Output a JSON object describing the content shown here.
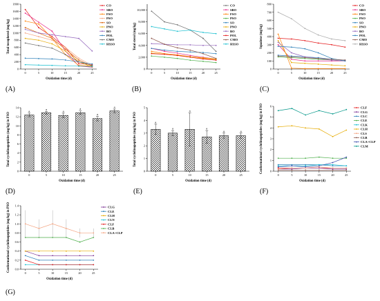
{
  "figure": {
    "background": "#ffffff"
  },
  "chart_data": [
    {
      "id": "A",
      "type": "line",
      "panel_label": "(A)",
      "xlabel": "Oxidation time (d)",
      "ylabel": "Total tocopherol (mg/kg)",
      "x": [
        0,
        5,
        10,
        15,
        20,
        25
      ],
      "xticks": [
        "0",
        "5",
        "10",
        "15",
        "20",
        "25"
      ],
      "ylim": [
        0,
        1800
      ],
      "yticks": [
        0,
        200,
        400,
        600,
        800,
        1000,
        1200,
        1400,
        1600,
        1800
      ],
      "yticklabels": [
        "0",
        "200",
        "400",
        "600",
        "800",
        "1000",
        "1200",
        "1400",
        "1600",
        "1800"
      ],
      "legend": "right",
      "series": [
        {
          "name": "CO",
          "color": "#e41a1c",
          "marker": "circle",
          "values": [
            1650,
            1150,
            900,
            600,
            150,
            120
          ]
        },
        {
          "name": "SBO",
          "color": "#e7298a",
          "marker": "circle",
          "values": [
            1550,
            1300,
            1050,
            500,
            80,
            50
          ]
        },
        {
          "name": "FSO",
          "color": "#ff7f00",
          "marker": "circle",
          "values": [
            1330,
            1250,
            850,
            400,
            100,
            80
          ]
        },
        {
          "name": "PSO",
          "color": "#f4a582",
          "marker": "circle",
          "values": [
            1000,
            900,
            800,
            600,
            300,
            100
          ]
        },
        {
          "name": "SO",
          "color": "#d95f02",
          "marker": "circle",
          "values": [
            1150,
            1000,
            850,
            550,
            250,
            80
          ]
        },
        {
          "name": "PNO",
          "color": "#e6ab02",
          "marker": "circle",
          "values": [
            850,
            800,
            700,
            500,
            200,
            60
          ]
        },
        {
          "name": "BO",
          "color": "#9467bd",
          "marker": "circle",
          "values": [
            1100,
            1000,
            950,
            900,
            850,
            500
          ]
        },
        {
          "name": "POL",
          "color": "#2c7fb8",
          "marker": "circle",
          "values": [
            300,
            290,
            280,
            250,
            200,
            140
          ]
        },
        {
          "name": "CMO",
          "color": "#6b6b6b",
          "marker": "circle",
          "values": [
            720,
            650,
            580,
            400,
            200,
            100
          ]
        },
        {
          "name": "HSSO",
          "color": "#17becf",
          "marker": "circle",
          "values": [
            120,
            110,
            100,
            90,
            80,
            70
          ]
        }
      ]
    },
    {
      "id": "B",
      "type": "line",
      "panel_label": "(B)",
      "xlabel": "Oxidation time (d)",
      "ylabel": "Total sterol (mg/kg)",
      "x": [
        0,
        5,
        10,
        15,
        20,
        25
      ],
      "xticks": [
        "0",
        "5",
        "10",
        "15",
        "20",
        "25"
      ],
      "ylim": [
        0,
        11000
      ],
      "yticks": [
        0,
        2000,
        4000,
        6000,
        8000,
        10000
      ],
      "yticklabels": [
        "0",
        "2,000",
        "4,000",
        "6,000",
        "8,000",
        "10,000"
      ],
      "legend": "right",
      "series": [
        {
          "name": "CO",
          "color": "#6b6b6b",
          "marker": "circle",
          "values": [
            9800,
            8000,
            7500,
            6600,
            5200,
            3000
          ]
        },
        {
          "name": "SBO",
          "color": "#e7298a",
          "marker": "circle",
          "values": [
            3500,
            3000,
            2700,
            2300,
            2000,
            1700
          ]
        },
        {
          "name": "FSO",
          "color": "#ff7f00",
          "marker": "circle",
          "values": [
            3000,
            2600,
            2400,
            2100,
            1800,
            1600
          ]
        },
        {
          "name": "PSO",
          "color": "#4daf4a",
          "marker": "circle",
          "values": [
            2200,
            2000,
            1800,
            1500,
            1300,
            1100
          ]
        },
        {
          "name": "SO",
          "color": "#2c7fb8",
          "marker": "circle",
          "values": [
            3500,
            3200,
            3000,
            2900,
            2800,
            2600
          ]
        },
        {
          "name": "PNO",
          "color": "#e6ab02",
          "marker": "circle",
          "values": [
            2700,
            2500,
            2300,
            2100,
            1900,
            1700
          ]
        },
        {
          "name": "BO",
          "color": "#9467bd",
          "marker": "circle",
          "values": [
            4300,
            4200,
            4100,
            4100,
            4000,
            4000
          ]
        },
        {
          "name": "POL",
          "color": "#e41a1c",
          "marker": "circle",
          "values": [
            2600,
            2500,
            2300,
            2000,
            1700,
            1500
          ]
        },
        {
          "name": "CMO",
          "color": "#8c564b",
          "marker": "circle",
          "values": [
            5200,
            4200,
            3600,
            3200,
            2600,
            1800
          ]
        },
        {
          "name": "HSSO",
          "color": "#17becf",
          "marker": "circle",
          "values": [
            7200,
            6800,
            6400,
            6600,
            6200,
            6000
          ]
        }
      ]
    },
    {
      "id": "C",
      "type": "line",
      "panel_label": "(C)",
      "xlabel": "Oxidation time (d)",
      "ylabel": "Squalene (mg/kg)",
      "x": [
        0,
        5,
        10,
        15,
        20,
        25
      ],
      "xticks": [
        "0",
        "5",
        "10",
        "15",
        "20",
        "25"
      ],
      "ylim": [
        0,
        800
      ],
      "yticks": [
        0,
        100,
        200,
        300,
        400,
        500,
        600,
        700,
        800
      ],
      "yticklabels": [
        "0",
        "100",
        "200",
        "300",
        "400",
        "500",
        "600",
        "700",
        "800"
      ],
      "legend": "right",
      "series": [
        {
          "name": "CO",
          "color": "#e41a1c",
          "marker": "circle",
          "values": [
            380,
            370,
            350,
            320,
            300,
            270
          ]
        },
        {
          "name": "SBO",
          "color": "#e7298a",
          "marker": "circle",
          "values": [
            300,
            120,
            100,
            100,
            100,
            100
          ]
        },
        {
          "name": "FSO",
          "color": "#ff7f00",
          "marker": "circle",
          "values": [
            430,
            10,
            5,
            5,
            5,
            5
          ]
        },
        {
          "name": "PSO",
          "color": "#4daf4a",
          "marker": "circle",
          "values": [
            150,
            140,
            130,
            120,
            110,
            100
          ]
        },
        {
          "name": "SO",
          "color": "#2c7fb8",
          "marker": "circle",
          "values": [
            170,
            160,
            150,
            140,
            120,
            110
          ]
        },
        {
          "name": "PNO",
          "color": "#e6ab02",
          "marker": "circle",
          "values": [
            350,
            80,
            70,
            60,
            50,
            40
          ]
        },
        {
          "name": "BO",
          "color": "#9467bd",
          "marker": "circle",
          "values": [
            330,
            200,
            150,
            130,
            110,
            100
          ]
        },
        {
          "name": "POL",
          "color": "#2c7fb8",
          "marker": "circle",
          "values": [
            280,
            270,
            250,
            200,
            130,
            100
          ]
        },
        {
          "name": "CMO",
          "color": "#8c564b",
          "marker": "circle",
          "values": [
            160,
            150,
            140,
            130,
            120,
            110
          ]
        },
        {
          "name": "HSSO",
          "color": "#aaaaaa",
          "marker": "circle",
          "values": [
            700,
            620,
            500,
            420,
            370,
            350
          ]
        }
      ]
    },
    {
      "id": "D",
      "type": "bar",
      "panel_label": "(D)",
      "xlabel": "Oxidation time (d)",
      "ylabel": "Total cyclolinopeptides (mg/kg) in FSO",
      "categories": [
        "0",
        "5",
        "10",
        "15",
        "20",
        "25"
      ],
      "values": [
        12.4,
        12.9,
        12.3,
        12.9,
        11.6,
        13.3
      ],
      "errors": [
        0.4,
        0.3,
        0.5,
        0.4,
        0.5,
        0.4
      ],
      "labels": [
        "a",
        "a",
        "a",
        "a",
        "a",
        "a"
      ],
      "ylim": [
        0,
        14
      ],
      "yticks": [
        0,
        2,
        4,
        6,
        8,
        10,
        12,
        14
      ],
      "yticklabels": [
        "0",
        "2",
        "4",
        "6",
        "8",
        "10",
        "12",
        "14"
      ]
    },
    {
      "id": "E",
      "type": "bar",
      "panel_label": "(E)",
      "xlabel": "Oxidation time (d)",
      "ylabel": "Total cyclolinopeptides (mg/kg) in PSO",
      "categories": [
        "0",
        "5",
        "10",
        "15",
        "20",
        "25"
      ],
      "values": [
        3.3,
        3.0,
        3.3,
        2.7,
        2.8,
        2.8
      ],
      "errors": [
        0.4,
        0.2,
        1.3,
        0.5,
        0.2,
        0.2
      ],
      "labels": [
        "a",
        "a",
        "a",
        "a",
        "a",
        "a"
      ],
      "ylim": [
        0,
        5
      ],
      "yticks": [
        0,
        1,
        2,
        3,
        4,
        5
      ],
      "yticklabels": [
        "0",
        "1",
        "2",
        "3",
        "4",
        "5"
      ]
    },
    {
      "id": "F",
      "type": "line",
      "panel_label": "(F)",
      "xlabel": "Oxidation time (d)",
      "ylabel": "Conformational cyclolinopeptides (mg/kg) in FSO",
      "x": [
        0,
        5,
        10,
        15,
        20,
        25
      ],
      "xticks": [
        "0",
        "5",
        "10",
        "15",
        "20",
        "25"
      ],
      "ylim": [
        0,
        6
      ],
      "yticks": [
        0,
        1,
        2,
        3,
        4,
        5,
        6
      ],
      "yticklabels": [
        "0",
        "1",
        "2",
        "3",
        "4",
        "5",
        "6"
      ],
      "legend": "right",
      "series": [
        {
          "name": "CLF",
          "color": "#e41a1c",
          "marker": "circle",
          "values": [
            0.3,
            0.3,
            0.3,
            0.3,
            0.3,
            0.3
          ]
        },
        {
          "name": "CLG",
          "color": "#7b3294",
          "marker": "circle",
          "values": [
            0.2,
            0.2,
            0.3,
            0.3,
            0.2,
            0.2
          ]
        },
        {
          "name": "CLC",
          "color": "#2c7fb8",
          "marker": "circle",
          "values": [
            0.6,
            0.6,
            0.6,
            0.6,
            0.5,
            0.5
          ]
        },
        {
          "name": "CLE",
          "color": "#4daf4a",
          "marker": "circle",
          "values": [
            1.2,
            1.2,
            1.2,
            1.3,
            1.2,
            1.2
          ]
        },
        {
          "name": "CLK",
          "color": "#17becf",
          "marker": "circle",
          "values": [
            0.5,
            0.5,
            0.5,
            0.6,
            0.6,
            0.5
          ]
        },
        {
          "name": "CLH",
          "color": "#e6ab02",
          "marker": "circle",
          "values": [
            4.1,
            4.2,
            4.0,
            3.9,
            3.2,
            3.8
          ]
        },
        {
          "name": "CLS",
          "color": "#f4a582",
          "marker": "circle",
          "values": [
            0.2,
            0.3,
            0.3,
            0.4,
            0.3,
            0.3
          ]
        },
        {
          "name": "CLB",
          "color": "#8c564b",
          "marker": "circle",
          "values": [
            0.1,
            0.1,
            0.1,
            0.1,
            0.1,
            0.1
          ]
        },
        {
          "name": "CLA+CLP",
          "color": "#3949ab",
          "marker": "circle",
          "values": [
            0.4,
            0.5,
            0.4,
            0.5,
            0.8,
            1.3
          ]
        },
        {
          "name": "CLM",
          "color": "#009688",
          "marker": "circle",
          "values": [
            5.6,
            5.8,
            5.2,
            5.6,
            5.3,
            5.7
          ]
        }
      ]
    },
    {
      "id": "G",
      "type": "line",
      "panel_label": "(G)",
      "xlabel": "Oxidation time (d)",
      "ylabel": "Conformational cyclolinopeptides (mg/kg) in PSO",
      "x": [
        0,
        5,
        10,
        15,
        20,
        25
      ],
      "xticks": [
        "0",
        "5",
        "10",
        "15",
        "20",
        "25"
      ],
      "ylim": [
        0,
        1.4
      ],
      "yticks": [
        0,
        0.2,
        0.4,
        0.6,
        0.8,
        1.0,
        1.2,
        1.4
      ],
      "yticklabels": [
        "0.0",
        "0.2",
        "0.4",
        "0.6",
        "0.8",
        "1.0",
        "1.2",
        "1.4"
      ],
      "legend": "right",
      "series": [
        {
          "name": "CLG",
          "color": "#7b3294",
          "marker": "circle",
          "values": [
            0.4,
            0.3,
            0.3,
            0.3,
            0.3,
            0.3
          ]
        },
        {
          "name": "CLE",
          "color": "#2c7fb8",
          "marker": "circle",
          "values": [
            0.3,
            0.2,
            0.2,
            0.2,
            0.2,
            0.2
          ]
        },
        {
          "name": "CLH",
          "color": "#e6ab02",
          "marker": "circle",
          "values": [
            0.4,
            0.4,
            0.4,
            0.4,
            0.4,
            0.4
          ]
        },
        {
          "name": "CLN",
          "color": "#17becf",
          "marker": "circle",
          "values": [
            0.1,
            0.1,
            0.1,
            0.1,
            0.1,
            0.1
          ]
        },
        {
          "name": "CLF",
          "color": "#e41a1c",
          "marker": "circle",
          "values": [
            0.2,
            0.1,
            0.1,
            0.1,
            0.1,
            0.1
          ]
        },
        {
          "name": "CLB",
          "color": "#4daf4a",
          "marker": "circle",
          "values": [
            0.7,
            0.7,
            0.7,
            0.7,
            0.6,
            0.7
          ]
        },
        {
          "name": "CLA+CLP",
          "color": "#f4a582",
          "marker": "circle",
          "values": [
            1.0,
            0.9,
            1.0,
            0.9,
            0.8,
            0.8
          ],
          "errors": [
            0.3,
            0.2,
            0.3,
            0.2,
            0.1,
            0.1
          ]
        }
      ]
    }
  ]
}
